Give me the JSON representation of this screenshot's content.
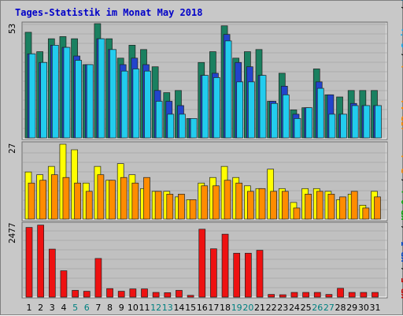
{
  "title": "Tages-Statistik im Monat May 2018",
  "right_legend": [
    {
      "text": "KB F",
      "color": "#cc0000"
    },
    {
      "text": " / ",
      "color": "#000000"
    },
    {
      "text": "KB In",
      "color": "#0044cc"
    },
    {
      "text": " / ",
      "color": "#000000"
    },
    {
      "text": "KB Out",
      "color": "#00aa00"
    },
    {
      "text": " / ",
      "color": "#000000"
    },
    {
      "text": "Rechner (IP-Adressen)",
      "color": "#ff8800"
    },
    {
      "text": " / ",
      "color": "#000000"
    },
    {
      "text": "Seiten",
      "color": "#00aaff"
    },
    {
      "text": " / ",
      "color": "#000000"
    },
    {
      "text": "Dateien",
      "color": "#006699"
    },
    {
      "text": " / ",
      "color": "#000000"
    },
    {
      "text": "Anfragen",
      "color": "#00aa00"
    }
  ],
  "chart_data": {
    "type": "bar",
    "title": "Tages-Statistik im Monat May 2018",
    "categories": [
      "1",
      "2",
      "3",
      "4",
      "5",
      "6",
      "7",
      "8",
      "9",
      "10",
      "11",
      "12",
      "13",
      "14",
      "15",
      "16",
      "17",
      "18",
      "19",
      "20",
      "21",
      "22",
      "23",
      "24",
      "25",
      "26",
      "27",
      "28",
      "29",
      "30",
      "31"
    ],
    "weekend_days": [
      "5",
      "6",
      "12",
      "13",
      "19",
      "20",
      "26",
      "27"
    ],
    "colors": {
      "anfragen": "#1a8060",
      "dateien": "#2244cc",
      "seiten": "#22ccee",
      "rechner": "#ff8c00",
      "besuche": "#ffff00",
      "kb_f": "#ee1111",
      "weekday_label": "#000000",
      "weekend_label": "#008080"
    },
    "panels": [
      {
        "name": "top",
        "max_label": "53",
        "ylim": [
          0,
          53
        ],
        "series": [
          {
            "name": "Anfragen",
            "values": [
              49,
              40,
              46,
              47,
              46,
              34,
              53,
              46,
              37,
              43,
              41,
              33,
              21,
              22,
              9,
              35,
              40,
              52,
              37,
              40,
              41,
              17,
              30,
              13,
              14,
              32,
              20,
              19,
              22,
              22,
              22
            ]
          },
          {
            "name": "Dateien",
            "values": [
              39,
              35,
              43,
              42,
              38,
              34,
              46,
              41,
              34,
              37,
              34,
              22,
              17,
              15,
              9,
              29,
              30,
              48,
              35,
              33,
              29,
              17,
              24,
              11,
              14,
              26,
              20,
              11,
              16,
              15,
              15
            ]
          },
          {
            "name": "Seiten",
            "values": [
              39,
              35,
              43,
              42,
              36,
              34,
              46,
              41,
              31,
              32,
              31,
              17,
              11,
              11,
              9,
              29,
              28,
              45,
              26,
              26,
              29,
              16,
              20,
              9,
              14,
              23,
              11,
              11,
              15,
              15,
              15
            ]
          }
        ]
      },
      {
        "name": "middle",
        "max_label": "27",
        "ylim": [
          0,
          27
        ],
        "series": [
          {
            "name": "Besuche",
            "values": [
              17,
              16,
              19,
              27,
              25,
              13,
              19,
              14,
              20,
              16,
              11,
              10,
              10,
              8,
              7,
              13,
              15,
              19,
              15,
              12,
              11,
              18,
              11,
              6,
              11,
              11,
              10,
              7,
              9,
              5,
              10
            ]
          },
          {
            "name": "Rechner",
            "values": [
              13,
              14,
              16,
              15,
              13,
              10,
              16,
              14,
              15,
              13,
              15,
              10,
              9,
              9,
              7,
              12,
              12,
              14,
              13,
              10,
              11,
              10,
              10,
              4,
              9,
              10,
              9,
              8,
              10,
              4,
              8
            ]
          }
        ]
      },
      {
        "name": "bottom",
        "max_label": "2477",
        "ylim": [
          0,
          2477
        ],
        "series": [
          {
            "name": "KB F",
            "values": [
              2380,
              2460,
              1640,
              900,
              230,
              200,
              1320,
              290,
              200,
              280,
              280,
              160,
              150,
              230,
              60,
              2320,
              1650,
              2150,
              1500,
              1500,
              1600,
              90,
              80,
              160,
              160,
              160,
              90,
              300,
              160,
              160,
              160
            ]
          }
        ]
      }
    ]
  }
}
